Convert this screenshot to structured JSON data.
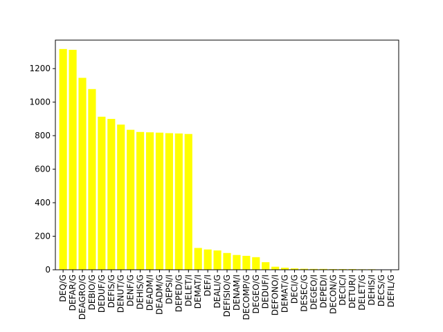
{
  "chart_data": {
    "type": "bar",
    "title": "",
    "xlabel": "",
    "ylabel": "",
    "bar_color": "#ffff00",
    "ylim": [
      0,
      1370
    ],
    "yticks": [
      0,
      200,
      400,
      600,
      800,
      1000,
      1200
    ],
    "grid": false,
    "categories": [
      "DEQ/G",
      "DEFAR/G",
      "DEAGRO/G",
      "DEBIO/G",
      "DEDUF/G",
      "DEFIS/G",
      "DENUT/G",
      "DENF/G",
      "DEHIS/G",
      "DEADM/I",
      "DEADM/G",
      "DEPSI/I",
      "DEPED/G",
      "DELET/I",
      "DEMAT/I",
      "DEF/I",
      "DEALI/G",
      "DEFISIO/G",
      "DENAM/I",
      "DECOMP/G",
      "DEGEO/G",
      "DEDUF/I",
      "DEFONO/I",
      "DEMAT/G",
      "DECI/G",
      "DESEC/G",
      "DEGEO/I",
      "DEPED/I",
      "DECON/G",
      "DECIC/I",
      "DETUR/I",
      "DELET/G",
      "DEHIS/I",
      "DECS/G",
      "DEFIL/G"
    ],
    "values": [
      1317,
      1312,
      1145,
      1078,
      913,
      900,
      866,
      835,
      822,
      820,
      818,
      815,
      813,
      810,
      130,
      121,
      115,
      100,
      88,
      83,
      75,
      45,
      18,
      12,
      8,
      6,
      5,
      5,
      4,
      4,
      4,
      3,
      3,
      2,
      2
    ]
  }
}
